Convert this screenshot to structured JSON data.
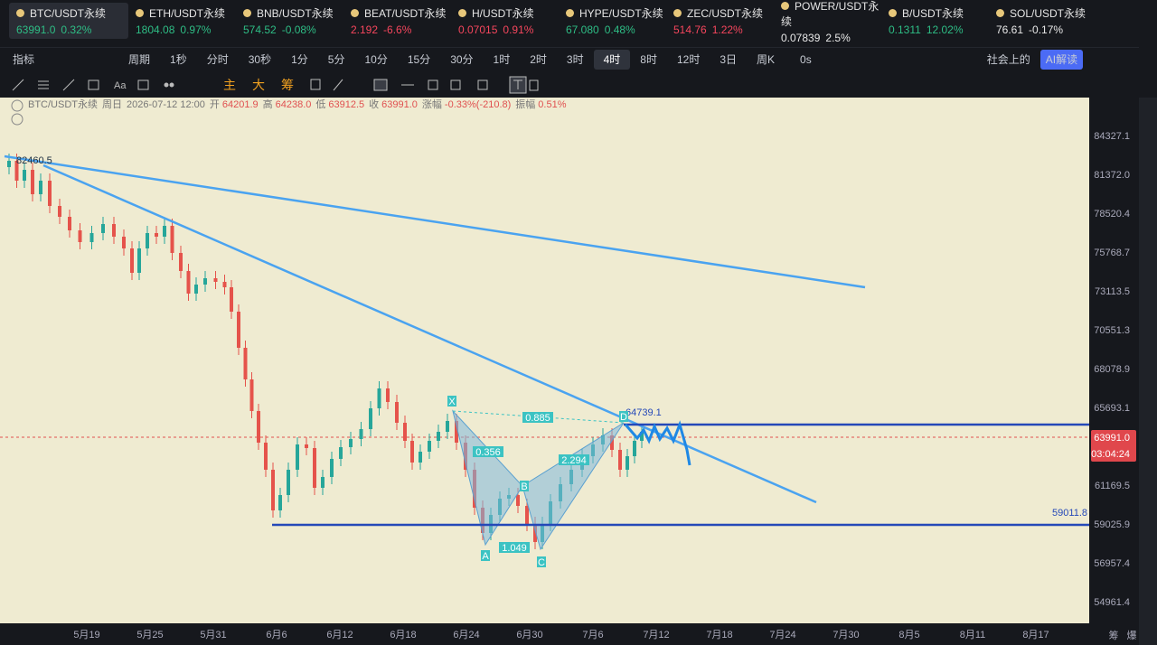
{
  "tickers": [
    {
      "symbol": "BTC/USDT永续",
      "price": "63991.0",
      "change": "0.32%",
      "color": "#2ebd85"
    },
    {
      "symbol": "ETH/USDT永续",
      "price": "1804.08",
      "change": "0.97%",
      "color": "#2ebd85"
    },
    {
      "symbol": "BNB/USDT永续",
      "price": "574.52",
      "change": "-0.08%",
      "color": "#2ebd85"
    },
    {
      "symbol": "BEAT/USDT永续",
      "price": "2.192",
      "change": "-6.6%",
      "color": "#f6465d"
    },
    {
      "symbol": "H/USDT永续",
      "price": "0.07015",
      "change": "0.91%",
      "color": "#f6465d"
    },
    {
      "symbol": "HYPE/USDT永续",
      "price": "67.080",
      "change": "0.48%",
      "color": "#2ebd85"
    },
    {
      "symbol": "ZEC/USDT永续",
      "price": "514.76",
      "change": "1.22%",
      "color": "#f6465d"
    },
    {
      "symbol": "POWER/USDT永续",
      "price": "0.07839",
      "change": "2.5%",
      "color": "#e8e8e8"
    },
    {
      "symbol": "B/USDT永续",
      "price": "0.1311",
      "change": "12.02%",
      "color": "#2ebd85"
    },
    {
      "symbol": "SOL/USDT永续",
      "price": "76.61",
      "change": "-0.17%",
      "color": "#e8e8e8"
    }
  ],
  "toolbar": {
    "indicators": "指标",
    "period": "周期",
    "intervals": [
      "1秒",
      "分时",
      "30秒",
      "1分",
      "5分",
      "10分",
      "15分",
      "30分",
      "1时",
      "2时",
      "3时",
      "4时",
      "8时",
      "12时",
      "3日",
      "周K"
    ],
    "selected_interval": 11,
    "countdown_setting": "0s",
    "social": "社会上的",
    "ai": "AI解读"
  },
  "drawing_tools": [
    "主",
    "大",
    "筹"
  ],
  "chart": {
    "info": {
      "symbol": "BTC/USDT永续",
      "period": "周日",
      "datetime": "2026-07-12 12:00",
      "fields": [
        {
          "label": "开",
          "value": "64201.9"
        },
        {
          "label": "高",
          "value": "64238.0"
        },
        {
          "label": "低",
          "value": "63912.5"
        },
        {
          "label": "收",
          "value": "63991.0"
        },
        {
          "label": "涨幅",
          "value": "-0.33%(-210.8)"
        },
        {
          "label": "振幅",
          "value": "0.51%"
        }
      ]
    },
    "price_labels": [
      "84327.1",
      "81372.0",
      "78520.4",
      "75768.7",
      "73113.5",
      "70551.3",
      "68078.9",
      "65693.1",
      "61169.5",
      "59025.9",
      "56957.4",
      "54961.4"
    ],
    "current_price": "63991.0",
    "countdown": "03:04:24",
    "date_labels": [
      "5月19",
      "5月25",
      "5月31",
      "6月6",
      "6月12",
      "6月18",
      "6月24",
      "6月30",
      "7月6",
      "7月12",
      "7月18",
      "7月24",
      "7月30",
      "8月5",
      "8月11",
      "8月17"
    ],
    "annotations": {
      "high_label": "82460.5",
      "level_label": "59011.8",
      "d_label": "64739.1",
      "points": [
        "X",
        "A",
        "B",
        "C",
        "D"
      ],
      "ratios": [
        "0.885",
        "0.356",
        "2.294",
        "1.049"
      ]
    },
    "footer": [
      "筹",
      "爆"
    ]
  }
}
